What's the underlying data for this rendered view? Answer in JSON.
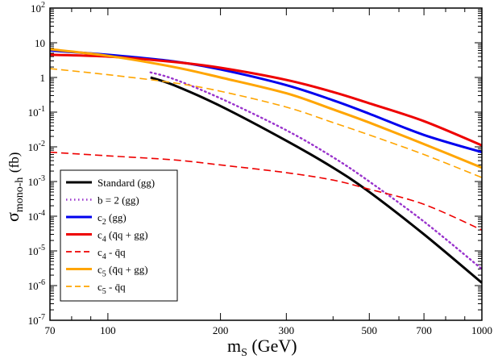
{
  "chart_data": {
    "type": "line",
    "title": "",
    "xlabel": "m",
    "xlabel_sub": "S",
    "xlabel_unit": "(GeV)",
    "ylabel": "σ",
    "ylabel_sub": "mono-h",
    "ylabel_unit": "(fb)",
    "xscale": "log",
    "yscale": "log",
    "xlim": [
      70,
      1000
    ],
    "ylim": [
      1e-07,
      100
    ],
    "x_ticks": [
      {
        "value": 70,
        "label": "70"
      },
      {
        "value": 100,
        "label": "100"
      },
      {
        "value": 200,
        "label": "200"
      },
      {
        "value": 300,
        "label": "300"
      },
      {
        "value": 500,
        "label": "500"
      },
      {
        "value": 700,
        "label": "700"
      },
      {
        "value": 1000,
        "label": "1000"
      }
    ],
    "y_ticks": [
      {
        "exp": -7,
        "base": "10",
        "sup": "-7"
      },
      {
        "exp": -6,
        "base": "10",
        "sup": "-6"
      },
      {
        "exp": -5,
        "base": "10",
        "sup": "-5"
      },
      {
        "exp": -4,
        "base": "10",
        "sup": "-4"
      },
      {
        "exp": -3,
        "base": "10",
        "sup": "-3"
      },
      {
        "exp": -2,
        "base": "10",
        "sup": "-2"
      },
      {
        "exp": -1,
        "base": "10",
        "sup": "-1"
      },
      {
        "exp": 0,
        "base": "1",
        "sup": ""
      },
      {
        "exp": 1,
        "base": "10",
        "sup": ""
      },
      {
        "exp": 2,
        "base": "10",
        "sup": "2"
      }
    ],
    "legend_position": "bottom-left",
    "series": [
      {
        "id": "standard",
        "name": "Standard (gg)",
        "legend_parts": [
          [
            "Standard (gg)",
            ""
          ]
        ],
        "color": "#000000",
        "dash": "solid",
        "x": [
          130,
          150,
          200,
          300,
          400,
          500,
          700,
          1000
        ],
        "y": [
          1.0,
          0.6,
          0.15,
          0.015,
          0.0025,
          0.0005,
          3e-05,
          1.2e-06
        ]
      },
      {
        "id": "b2",
        "name": "b = 2 (gg)",
        "legend_parts": [
          [
            "b = 2 (gg)",
            ""
          ]
        ],
        "color": "#9933cc",
        "dash": "dotted",
        "x": [
          130,
          150,
          200,
          300,
          400,
          500,
          700,
          1000
        ],
        "y": [
          1.4,
          0.9,
          0.25,
          0.03,
          0.005,
          0.001,
          7e-05,
          3e-06
        ]
      },
      {
        "id": "c2",
        "name": "c2 (gg)",
        "legend_parts": [
          [
            "c",
            ""
          ],
          [
            "2",
            "sub"
          ],
          [
            " (gg)",
            ""
          ]
        ],
        "color": "#0000ee",
        "dash": "solid",
        "x": [
          70,
          100,
          150,
          200,
          300,
          400,
          500,
          700,
          1000
        ],
        "y": [
          6.0,
          4.5,
          2.9,
          1.7,
          0.6,
          0.22,
          0.09,
          0.022,
          0.007
        ]
      },
      {
        "id": "c4",
        "name": "c4 (q̄q + gg)",
        "legend_parts": [
          [
            "c",
            ""
          ],
          [
            "4",
            "sub"
          ],
          [
            " (q̄q + gg)",
            ""
          ]
        ],
        "color": "#ee0000",
        "dash": "solid",
        "x": [
          70,
          100,
          150,
          200,
          300,
          400,
          500,
          700,
          1000
        ],
        "y": [
          4.5,
          4.0,
          2.8,
          1.9,
          0.85,
          0.38,
          0.18,
          0.055,
          0.011
        ]
      },
      {
        "id": "c4qq",
        "name": "c4 - q̄q",
        "legend_parts": [
          [
            "c",
            ""
          ],
          [
            "4",
            "sub"
          ],
          [
            " - q̄q",
            ""
          ]
        ],
        "color": "#ee0000",
        "dash": "dashed",
        "x": [
          70,
          100,
          150,
          200,
          300,
          400,
          500,
          700,
          1000
        ],
        "y": [
          0.007,
          0.0055,
          0.0042,
          0.003,
          0.0018,
          0.0011,
          0.0006,
          0.00022,
          4e-05
        ]
      },
      {
        "id": "c5",
        "name": "c5 (q̄q + gg)",
        "legend_parts": [
          [
            "c",
            ""
          ],
          [
            "5",
            "sub"
          ],
          [
            " (q̄q + gg)",
            ""
          ]
        ],
        "color": "#ffa500",
        "dash": "solid",
        "x": [
          70,
          100,
          150,
          200,
          300,
          400,
          500,
          700,
          1000
        ],
        "y": [
          6.5,
          4.2,
          2.0,
          1.0,
          0.35,
          0.12,
          0.05,
          0.012,
          0.0025
        ]
      },
      {
        "id": "c5qq",
        "name": "c5 - q̄q",
        "legend_parts": [
          [
            "c",
            ""
          ],
          [
            "5",
            "sub"
          ],
          [
            " - q̄q",
            ""
          ]
        ],
        "color": "#ffa500",
        "dash": "dashed",
        "x": [
          70,
          100,
          150,
          200,
          300,
          400,
          500,
          700,
          1000
        ],
        "y": [
          1.8,
          1.2,
          0.7,
          0.4,
          0.14,
          0.05,
          0.022,
          0.006,
          0.0013
        ]
      }
    ]
  }
}
